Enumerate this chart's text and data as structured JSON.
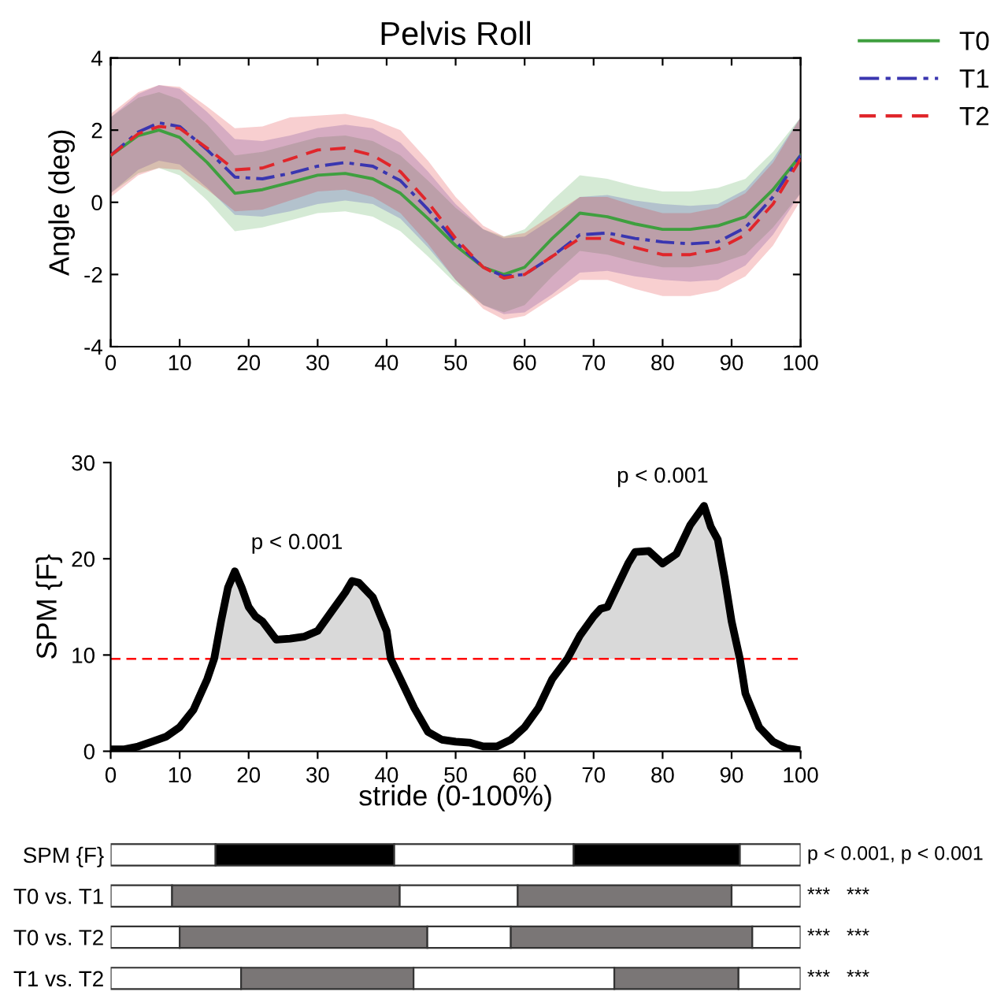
{
  "chart_data": [
    {
      "type": "line",
      "title": "Pelvis Roll",
      "ylabel": "Angle (deg)",
      "xlim": [
        0,
        100
      ],
      "ylim": [
        -4,
        4
      ],
      "xticks": [
        0,
        10,
        20,
        30,
        40,
        50,
        60,
        70,
        80,
        90,
        100
      ],
      "yticks": [
        -4,
        -2,
        0,
        2,
        4
      ],
      "grid": false,
      "legend": "top right",
      "x": [
        0,
        4,
        7,
        10,
        14,
        18,
        22,
        26,
        30,
        34,
        38,
        42,
        46,
        50,
        54,
        57,
        60,
        64,
        68,
        72,
        76,
        80,
        84,
        88,
        92,
        96,
        100
      ],
      "series": [
        {
          "name": "T0",
          "color": "#3f9f3f",
          "line_style": "solid",
          "values": [
            1.3,
            1.85,
            2.0,
            1.8,
            1.1,
            0.25,
            0.35,
            0.55,
            0.75,
            0.8,
            0.65,
            0.25,
            -0.45,
            -1.2,
            -1.8,
            -2.0,
            -1.8,
            -1.0,
            -0.3,
            -0.4,
            -0.6,
            -0.75,
            -0.75,
            -0.65,
            -0.4,
            0.35,
            1.3
          ],
          "upper": [
            2.35,
            2.9,
            3.05,
            2.85,
            2.15,
            1.3,
            1.4,
            1.6,
            1.8,
            1.85,
            1.7,
            1.3,
            0.6,
            -0.15,
            -0.75,
            -0.95,
            -0.75,
            0.05,
            0.75,
            0.65,
            0.45,
            0.3,
            0.3,
            0.4,
            0.65,
            1.4,
            2.35
          ],
          "lower": [
            0.25,
            0.8,
            0.95,
            0.75,
            0.05,
            -0.8,
            -0.7,
            -0.5,
            -0.3,
            -0.25,
            -0.4,
            -0.8,
            -1.5,
            -2.25,
            -2.85,
            -3.05,
            -2.85,
            -2.05,
            -1.35,
            -1.45,
            -1.65,
            -1.8,
            -1.8,
            -1.7,
            -1.45,
            -0.7,
            0.25
          ]
        },
        {
          "name": "T1",
          "color": "#3a36b0",
          "line_style": "dashdot",
          "values": [
            1.3,
            1.95,
            2.2,
            2.1,
            1.45,
            0.7,
            0.65,
            0.8,
            1.0,
            1.1,
            1.0,
            0.6,
            -0.2,
            -1.1,
            -1.8,
            -2.05,
            -2.0,
            -1.5,
            -0.9,
            -0.85,
            -1.0,
            -1.1,
            -1.15,
            -1.1,
            -0.7,
            0.15,
            1.3
          ],
          "upper": [
            2.35,
            3.0,
            3.25,
            3.15,
            2.5,
            1.75,
            1.7,
            1.85,
            2.05,
            2.15,
            2.05,
            1.65,
            0.85,
            -0.05,
            -0.75,
            -1.0,
            -0.95,
            -0.45,
            0.15,
            0.2,
            0.05,
            -0.05,
            -0.1,
            -0.05,
            0.35,
            1.2,
            2.35
          ],
          "lower": [
            0.25,
            0.9,
            1.15,
            1.05,
            0.4,
            -0.35,
            -0.4,
            -0.25,
            -0.05,
            0.05,
            -0.05,
            -0.45,
            -1.25,
            -2.15,
            -2.85,
            -3.1,
            -3.05,
            -2.55,
            -1.95,
            -1.9,
            -2.05,
            -2.15,
            -2.2,
            -2.15,
            -1.75,
            -0.9,
            0.25
          ]
        },
        {
          "name": "T2",
          "color": "#e0262b",
          "line_style": "dashed",
          "values": [
            1.3,
            1.9,
            2.1,
            2.05,
            1.5,
            0.9,
            0.95,
            1.2,
            1.45,
            1.5,
            1.3,
            0.85,
            0.0,
            -1.0,
            -1.8,
            -2.1,
            -2.0,
            -1.5,
            -1.0,
            -1.0,
            -1.25,
            -1.45,
            -1.45,
            -1.3,
            -0.9,
            -0.05,
            1.2
          ],
          "upper": [
            2.45,
            3.05,
            3.25,
            3.2,
            2.65,
            2.05,
            2.1,
            2.35,
            2.4,
            2.45,
            2.3,
            2.0,
            1.15,
            0.15,
            -0.65,
            -0.95,
            -0.85,
            -0.35,
            0.15,
            0.15,
            -0.1,
            -0.3,
            -0.3,
            -0.15,
            0.25,
            1.1,
            2.35
          ],
          "lower": [
            0.15,
            0.75,
            0.95,
            0.9,
            0.35,
            -0.25,
            -0.2,
            0.05,
            0.3,
            0.35,
            0.15,
            -0.3,
            -1.15,
            -2.15,
            -2.95,
            -3.25,
            -3.15,
            -2.65,
            -2.15,
            -2.15,
            -2.4,
            -2.6,
            -2.6,
            -2.45,
            -2.05,
            -1.2,
            0.05
          ]
        }
      ]
    },
    {
      "type": "line",
      "ylabel": "SPM {F}",
      "xlabel": "stride (0-100%)",
      "xlim": [
        0,
        100
      ],
      "ylim": [
        0,
        30
      ],
      "xticks": [
        0,
        10,
        20,
        30,
        40,
        50,
        60,
        70,
        80,
        90,
        100
      ],
      "yticks": [
        0,
        10,
        20,
        30
      ],
      "grid": false,
      "x": [
        0,
        2,
        4,
        6,
        8,
        10,
        12,
        14,
        15,
        16,
        17,
        18,
        19,
        20,
        21,
        22,
        24,
        26,
        28,
        30,
        32,
        34,
        35,
        36,
        38,
        40,
        40.6,
        42,
        44,
        46,
        48,
        50,
        52,
        54,
        56,
        58,
        60,
        62,
        64,
        66.2,
        68,
        70,
        71,
        72,
        74,
        75,
        76,
        78,
        80,
        82,
        84,
        86,
        87,
        88,
        89,
        90,
        91.2,
        92,
        94,
        96,
        98,
        100
      ],
      "series": [
        {
          "color": "#000000",
          "values": [
            0.2,
            0.2,
            0.5,
            1.0,
            1.5,
            2.5,
            4.3,
            7.5,
            9.6,
            13.5,
            17,
            18.7,
            17,
            15,
            14,
            13.5,
            11.6,
            11.7,
            11.9,
            12.5,
            14.5,
            16.5,
            17.7,
            17.5,
            16,
            12.5,
            9.6,
            7.5,
            4.5,
            2,
            1.2,
            1.0,
            0.9,
            0.5,
            0.5,
            1.2,
            2.5,
            4.5,
            7.5,
            9.6,
            12,
            14,
            14.8,
            15,
            18,
            19.5,
            20.7,
            20.8,
            19.5,
            20.5,
            23.5,
            25.5,
            23.3,
            22,
            18,
            13.5,
            9.6,
            6,
            2.5,
            1,
            0.3,
            0.1
          ],
          "upper": [
            null,
            null,
            null,
            null,
            null,
            null,
            null,
            null,
            9.6,
            13.5,
            17,
            18.7,
            17,
            15,
            14,
            13.5,
            11.6,
            11.7,
            11.9,
            12.5,
            14.5,
            16.5,
            17.7,
            17.5,
            16,
            12.5,
            9.6,
            null,
            null,
            null,
            null,
            null,
            null,
            null,
            null,
            null,
            null,
            null,
            null,
            9.6,
            12,
            14,
            14.8,
            15,
            18,
            19.5,
            20.7,
            20.8,
            19.5,
            20.5,
            23.5,
            25.5,
            23.3,
            22,
            18,
            13.5,
            9.6,
            null,
            null,
            null,
            null,
            null
          ],
          "lower": [
            null,
            null,
            null,
            null,
            null,
            null,
            null,
            null,
            9.6,
            9.6,
            9.6,
            9.6,
            9.6,
            9.6,
            9.6,
            9.6,
            9.6,
            9.6,
            9.6,
            9.6,
            9.6,
            9.6,
            9.6,
            9.6,
            9.6,
            9.6,
            9.6,
            null,
            null,
            null,
            null,
            null,
            null,
            null,
            null,
            null,
            null,
            null,
            null,
            9.6,
            9.6,
            9.6,
            9.6,
            9.6,
            9.6,
            9.6,
            9.6,
            9.6,
            9.6,
            9.6,
            9.6,
            9.6,
            9.6,
            9.6,
            9.6,
            9.6,
            9.6,
            null,
            null,
            null,
            null,
            null
          ]
        }
      ],
      "ref_lines": [
        {
          "axis": "y",
          "value": 9.6,
          "color": "#ff0000",
          "line_style": "dashed"
        }
      ],
      "annotations": [
        "p < 0.001",
        "p < 0.001"
      ]
    },
    {
      "type": "bar",
      "orientation": "horizontal",
      "stacked": true,
      "xlim": [
        0,
        100
      ],
      "tick_labels": "y",
      "categories": [
        "SPM {F}",
        "T0 vs. T1",
        "T0 vs. T2",
        "T1 vs. T2"
      ],
      "series": [
        {
          "colors": [
            "#ffffff",
            "#ffffff",
            "#ffffff",
            "#ffffff"
          ],
          "values": [
            15.2,
            8.9,
            10.0,
            18.9
          ]
        },
        {
          "colors": [
            "#000000",
            "#7a7676",
            "#7a7676",
            "#7a7676"
          ],
          "values": [
            25.9,
            33.0,
            35.9,
            25.0
          ]
        },
        {
          "colors": [
            "#ffffff",
            "#ffffff",
            "#ffffff",
            "#ffffff"
          ],
          "values": [
            26.0,
            17.1,
            12.1,
            29.1
          ]
        },
        {
          "colors": [
            "#000000",
            "#7a7676",
            "#7a7676",
            "#7a7676"
          ],
          "values": [
            24.1,
            31.0,
            35.0,
            18.0
          ]
        },
        {
          "colors": [
            "#ffffff",
            "#ffffff",
            "#ffffff",
            "#ffffff"
          ],
          "values": [
            8.8,
            10.0,
            7.0,
            9.0
          ]
        }
      ],
      "annotations": [
        "p < 0.001, p < 0.001",
        "***   ***",
        "***   ***",
        "***   ***"
      ]
    }
  ]
}
